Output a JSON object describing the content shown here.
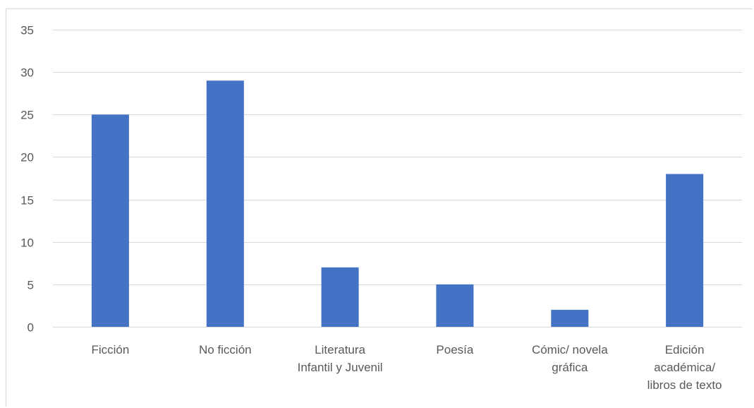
{
  "chart_data": {
    "type": "bar",
    "title": "",
    "xlabel": "",
    "ylabel": "",
    "categories": [
      [
        "Ficción"
      ],
      [
        "No ficción"
      ],
      [
        "Literatura",
        "Infantil y Juvenil"
      ],
      [
        "Poesía"
      ],
      [
        "Cómic/ novela",
        "gráfica"
      ],
      [
        "Edición",
        "académica/",
        "libros de texto"
      ]
    ],
    "values": [
      25,
      29,
      7,
      5,
      2,
      18
    ],
    "ylim": [
      0,
      35
    ],
    "yticks": [
      0,
      5,
      10,
      15,
      20,
      25,
      30,
      35
    ],
    "grid": true,
    "legend": "none",
    "colors": {
      "bar": "#4472c4",
      "grid": "#d9d9d9",
      "text": "#595959"
    }
  }
}
